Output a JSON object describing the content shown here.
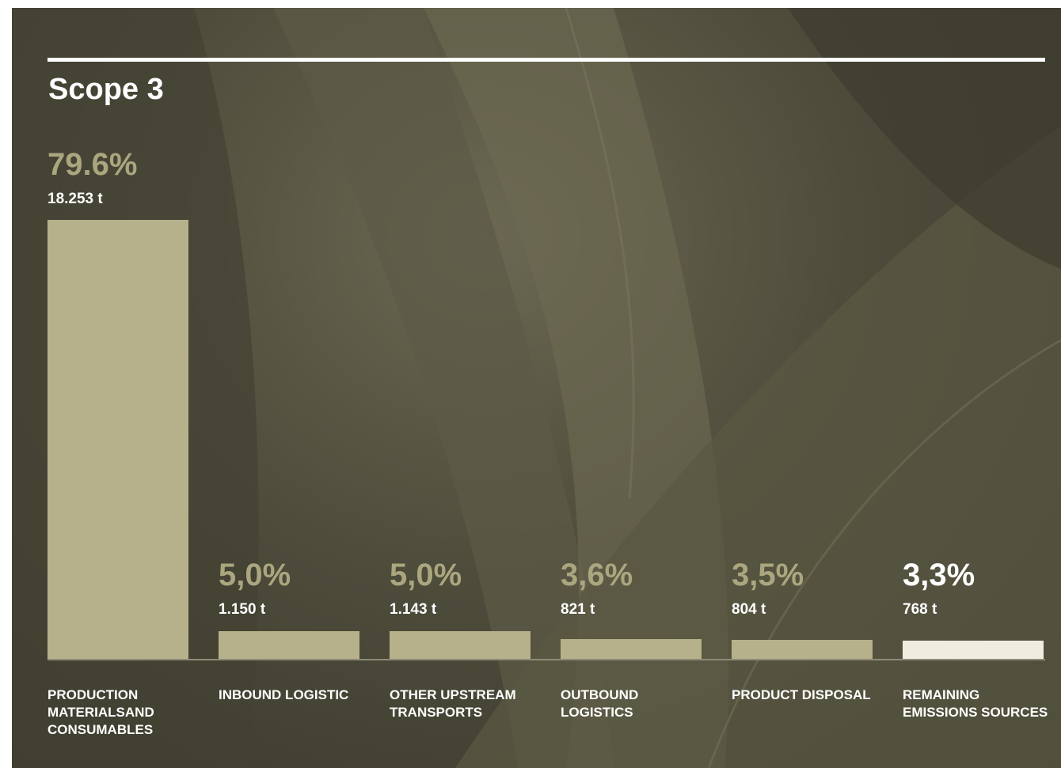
{
  "chart_data": {
    "type": "bar",
    "title": "Scope 3",
    "categories": [
      "PRODUCTION MATERIALSAND CONSUMABLES",
      "INBOUND LOGISTIC",
      "OTHER UPSTREAM TRANSPORTS",
      "OUTBOUND LOGISTICS",
      "PRODUCT DISPOSAL",
      "REMAINING EMISSIONS SOURCES"
    ],
    "values": [
      79.6,
      5.0,
      5.0,
      3.6,
      3.5,
      3.3
    ],
    "value_labels": [
      "79.6%",
      "5,0%",
      "5,0%",
      "3,6%",
      "3,5%",
      "3,3%"
    ],
    "amounts": [
      18253,
      1150,
      1143,
      821,
      804,
      768
    ],
    "amount_labels": [
      "18.253 t",
      "1.150 t",
      "1.143 t",
      "821 t",
      "804 t",
      "768 t"
    ],
    "colors": [
      "#b6b18a",
      "#b6b18a",
      "#b6b18a",
      "#b6b18a",
      "#b6b18a",
      "#f1ece0"
    ],
    "value_label_colors": [
      "#aaa67f",
      "#aaa67f",
      "#aaa67f",
      "#aaa67f",
      "#aaa67f",
      "#ffffff"
    ]
  }
}
